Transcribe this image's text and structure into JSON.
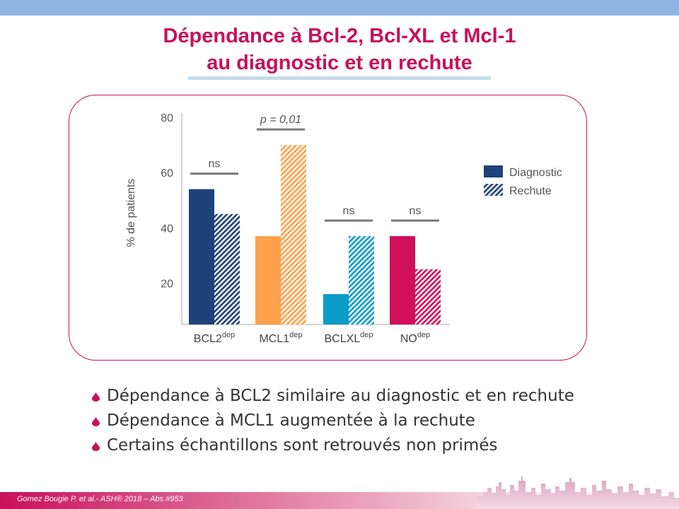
{
  "slide": {
    "title_line1": "Dépendance à Bcl-2, Bcl-XL et Mcl-1",
    "title_line2": "au diagnostic et en rechute",
    "bullets": [
      "Dépendance à BCL2 similaire au diagnostic et en rechute",
      "Dépendance à MCL1 augmentée à la rechute",
      "Certains échantillons sont retrouvés non primés"
    ],
    "footer": "Gomez Bougie P. et al.- ASH® 2018 – Abs.#953",
    "colors": {
      "accent": "#c8105a",
      "topbar": "#8fb4e3"
    }
  },
  "chart_data": {
    "type": "bar",
    "categories": [
      {
        "base": "BCL2",
        "sup": "dep"
      },
      {
        "base": "MCL1",
        "sup": "dep"
      },
      {
        "base": "BCLXL",
        "sup": "dep"
      },
      {
        "base": "NO",
        "sup": "dep"
      }
    ],
    "series": [
      {
        "name": "Diagnostic",
        "values": [
          54,
          37,
          16,
          37
        ],
        "fill": "solid"
      },
      {
        "name": "Rechute",
        "values": [
          45,
          70,
          37,
          25
        ],
        "fill": "hatched"
      }
    ],
    "category_colors": [
      "#1e4279",
      "#ffa04a",
      "#0c9cc8",
      "#d1105a"
    ],
    "legend_color": "#1e4279",
    "annotations": [
      "ns",
      "p = 0,01",
      "ns",
      "ns"
    ],
    "ylabel": "% de patients",
    "xlabel": "",
    "yticks": [
      20,
      40,
      60,
      80
    ],
    "ylim": [
      5,
      80
    ],
    "grid": false,
    "legend": "right"
  }
}
